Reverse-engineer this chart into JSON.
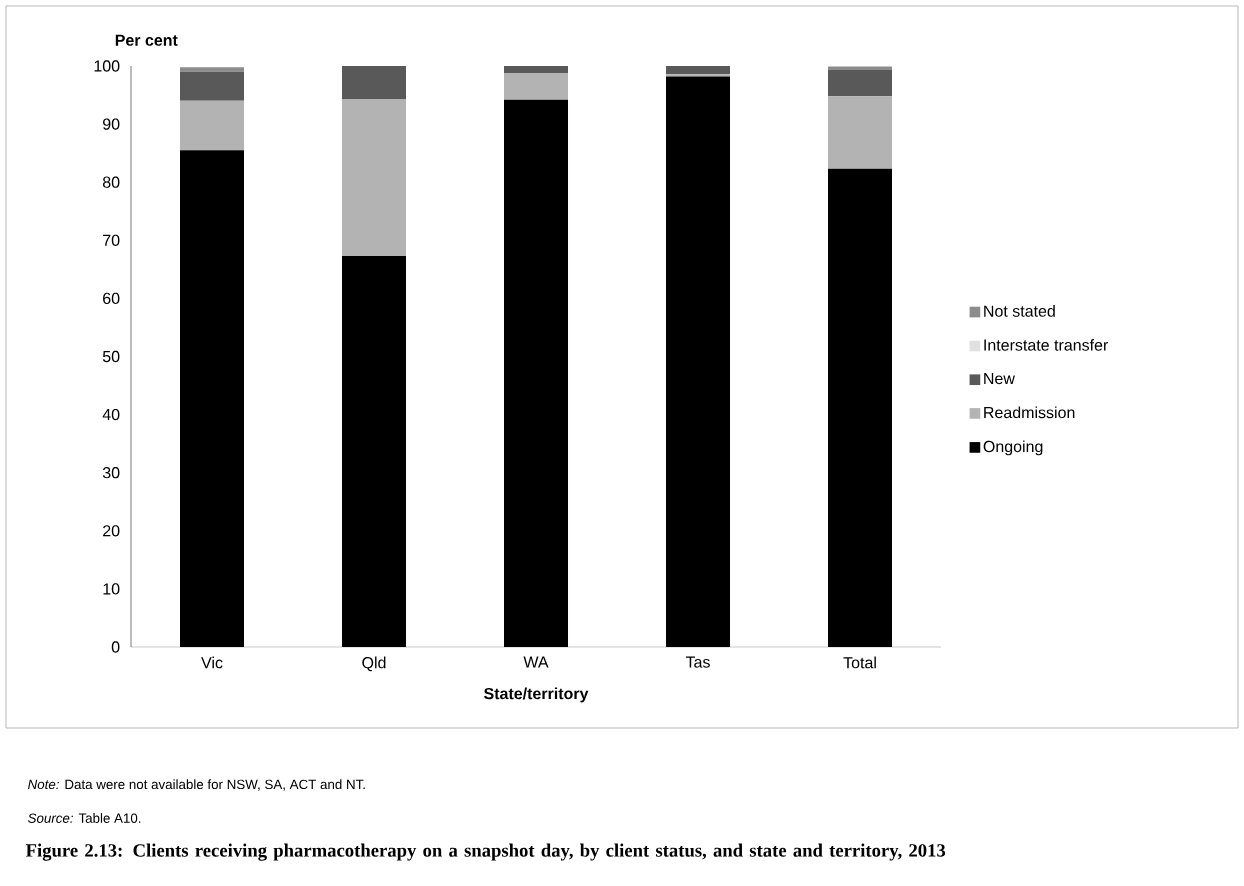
{
  "chart_data": {
    "type": "bar",
    "stacked": true,
    "title": "Figure 2.13: Clients receiving pharmacotherapy on a snapshot day, by client status, and state and territory, 2013",
    "xlabel": "State/territory",
    "ylabel": "Per cent",
    "categories": [
      "Vic",
      "Qld",
      "WA",
      "Tas",
      "Total"
    ],
    "series": [
      {
        "name": "Ongoing",
        "color": "#000000",
        "values": [
          85.5,
          67.3,
          94.2,
          98.2,
          82.3
        ]
      },
      {
        "name": "Readmission",
        "color": "#b3b3b3",
        "values": [
          8.5,
          27.0,
          4.6,
          0.4,
          12.5
        ]
      },
      {
        "name": "New",
        "color": "#595959",
        "values": [
          5.0,
          5.7,
          1.2,
          1.4,
          4.6
        ]
      },
      {
        "name": "Interstate transfer",
        "color": "#e0e0e0",
        "values": [
          0,
          0,
          0,
          0,
          0
        ]
      },
      {
        "name": "Not stated",
        "color": "#8c8c8c",
        "values": [
          0.8,
          0,
          0,
          0,
          0.5
        ]
      }
    ],
    "ylim": [
      0,
      100
    ],
    "yticks": [
      0,
      10,
      20,
      30,
      40,
      50,
      60,
      70,
      80,
      90,
      100
    ],
    "legend": "right",
    "annotations": [
      "*Note:* Data were not available for NSW, SA, ACT and NT.",
      "*Source:* Table A10."
    ]
  }
}
